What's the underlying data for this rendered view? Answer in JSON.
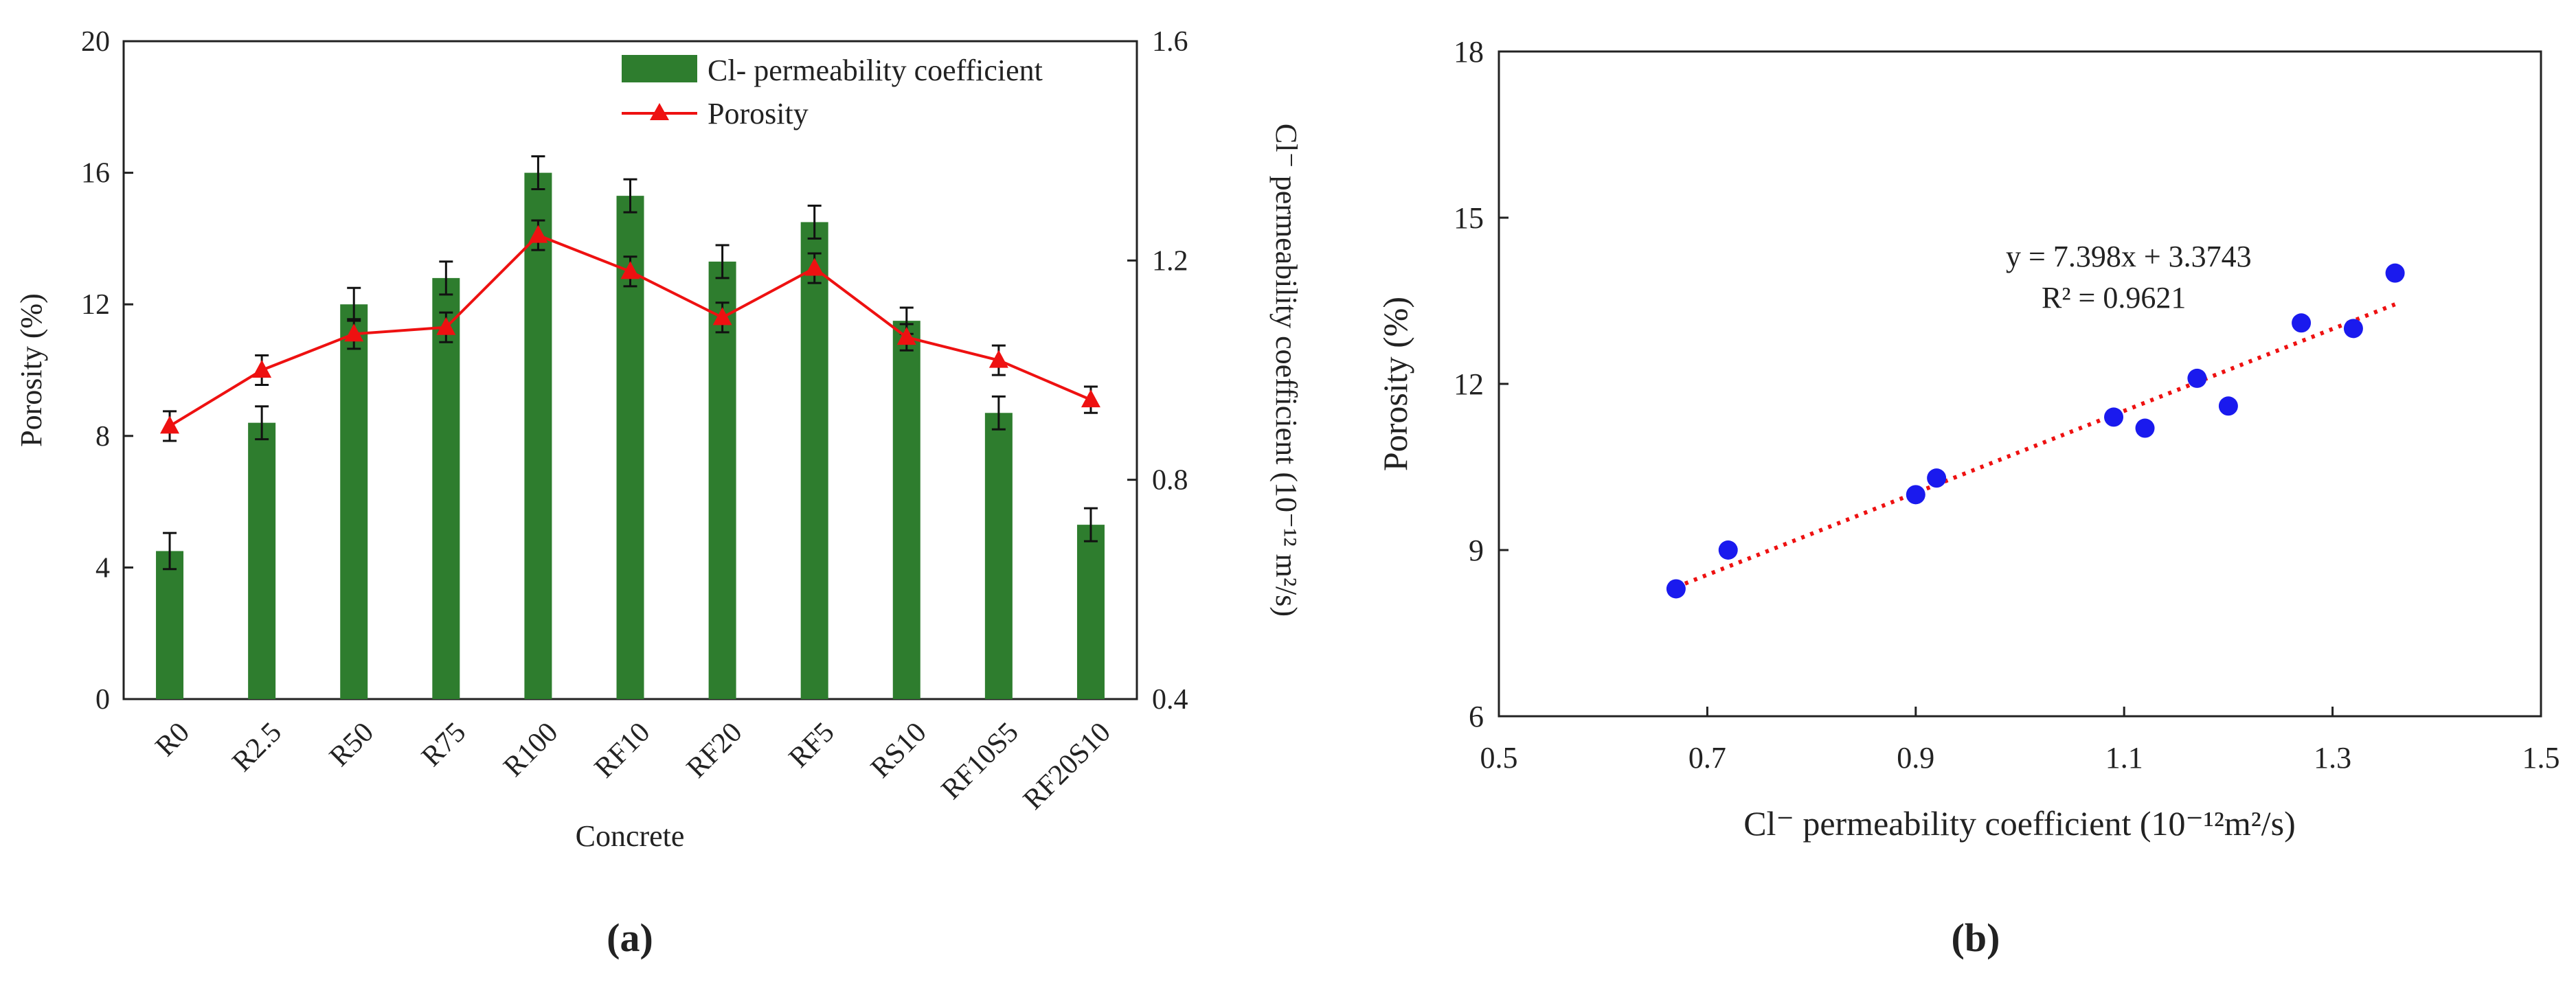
{
  "chart_data": [
    {
      "panel_label": "(a)",
      "type": "bar",
      "xlabel": "Concrete",
      "ylabel_left": "Porosity (%)",
      "ylabel_right": "Cl⁻ permeability coefficient (10⁻¹² m²/s)",
      "ylim_left": [
        0,
        20
      ],
      "ylim_right": [
        0.4,
        1.6
      ],
      "yticks_left": [
        "0",
        "4",
        "8",
        "12",
        "16",
        "20"
      ],
      "yticks_right": [
        "0.4",
        "0.8",
        "1.2",
        "1.6"
      ],
      "categories": [
        "R0",
        "R2.5",
        "R50",
        "R75",
        "R100",
        "RF10",
        "RF20",
        "RF5",
        "RS10",
        "RF10S5",
        "RF20S10"
      ],
      "legend": {
        "position": "top-right",
        "bar_label": "Cl- permeability coefficient",
        "line_label": "Porosity"
      },
      "series": [
        {
          "name": "Cl- permeability coefficient",
          "type": "bar",
          "axis": "left",
          "color": "#2e7d2e",
          "values": [
            4.5,
            8.4,
            12.0,
            12.8,
            16.0,
            15.3,
            13.3,
            14.5,
            11.5,
            8.7,
            5.3
          ],
          "errors": [
            0.55,
            0.5,
            0.5,
            0.5,
            0.5,
            0.5,
            0.5,
            0.5,
            0.4,
            0.5,
            0.5
          ]
        },
        {
          "name": "Porosity",
          "type": "line",
          "axis": "left",
          "color": "#ee1111",
          "values": [
            8.3,
            10.0,
            11.1,
            11.3,
            14.1,
            13.0,
            11.6,
            13.1,
            11.0,
            10.3,
            9.1
          ],
          "errors": [
            0.45,
            0.45,
            0.45,
            0.45,
            0.45,
            0.45,
            0.45,
            0.45,
            0.4,
            0.45,
            0.4
          ]
        }
      ]
    },
    {
      "panel_label": "(b)",
      "type": "scatter",
      "xlabel": "Cl⁻ permeability coefficient (10⁻¹²m²/s)",
      "ylabel": "Porosity (%)",
      "xlim": [
        0.5,
        1.5
      ],
      "ylim": [
        6,
        18
      ],
      "xticks": [
        "0.5",
        "0.7",
        "0.9",
        "1.1",
        "1.3",
        "1.5"
      ],
      "yticks": [
        "6",
        "9",
        "12",
        "15",
        "18"
      ],
      "points_color": "#1a1aee",
      "x": [
        0.67,
        0.72,
        0.9,
        0.92,
        1.09,
        1.12,
        1.17,
        1.2,
        1.27,
        1.32,
        1.36
      ],
      "y": [
        8.3,
        9.0,
        10.0,
        10.3,
        11.4,
        11.2,
        12.1,
        11.6,
        13.1,
        13.0,
        14.0
      ],
      "fit": {
        "slope": 7.398,
        "intercept": 3.3743,
        "x_range": [
          0.67,
          1.36
        ],
        "color": "#ee1111"
      },
      "equation": "y = 7.398x + 3.3743",
      "r2_label": "R² = 0.9621"
    }
  ]
}
